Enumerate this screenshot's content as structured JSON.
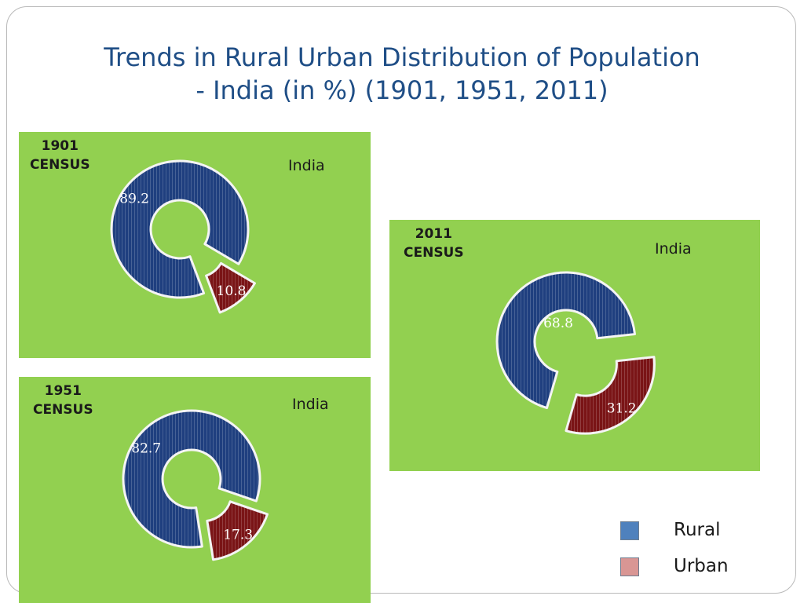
{
  "title": {
    "line1": "Trends in Rural Urban Distribution of Population",
    "line2": "- India (in %) (1901, 1951, 2011)"
  },
  "colors": {
    "panel": "#92d050",
    "rural": "#1f3f7f",
    "urban": "#7a1416",
    "legend_rural": "#4f81bd",
    "legend_urban": "#d99694"
  },
  "legend": {
    "rural": "Rural",
    "urban": "Urban"
  },
  "chart_data": [
    {
      "type": "pie",
      "census_line1": "1901",
      "census_line2": "CENSUS",
      "region": "India",
      "categories": [
        "Rural",
        "Urban"
      ],
      "values": [
        89.2,
        10.8
      ],
      "labels": [
        "89.2",
        "10.8"
      ]
    },
    {
      "type": "pie",
      "census_line1": "1951",
      "census_line2": "CENSUS",
      "region": "India",
      "categories": [
        "Rural",
        "Urban"
      ],
      "values": [
        82.7,
        17.3
      ],
      "labels": [
        "82.7",
        "17.3"
      ]
    },
    {
      "type": "pie",
      "census_line1": "2011",
      "census_line2": "CENSUS",
      "region": "India",
      "categories": [
        "Rural",
        "Urban"
      ],
      "values": [
        68.8,
        31.2
      ],
      "labels": [
        "68.8",
        "31.2"
      ]
    }
  ]
}
